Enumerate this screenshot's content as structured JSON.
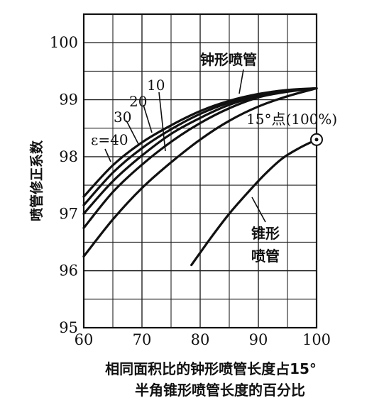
{
  "chart_data": {
    "type": "line",
    "xlabel_line1": "相同面积比的钟形喷管长度占15°",
    "xlabel_line2": "半角锥形喷管长度的百分比",
    "ylabel": "喷管修正系数",
    "xlim": [
      60,
      100
    ],
    "ylim": [
      95,
      100.5
    ],
    "x_ticks": [
      "60",
      "70",
      "80",
      "90",
      "100"
    ],
    "y_ticks": [
      "95",
      "96",
      "97",
      "98",
      "99",
      "100"
    ],
    "grid": true,
    "series": [
      {
        "name": "ε=40",
        "x": [
          60,
          65,
          70,
          75,
          80,
          85,
          90,
          95,
          100
        ],
        "y": [
          97.3,
          97.85,
          98.25,
          98.55,
          98.8,
          98.98,
          99.1,
          99.17,
          99.2
        ]
      },
      {
        "name": "30",
        "x": [
          60,
          65,
          70,
          75,
          80,
          85,
          90,
          95,
          100
        ],
        "y": [
          97.15,
          97.72,
          98.15,
          98.48,
          98.75,
          98.95,
          99.08,
          99.16,
          99.2
        ]
      },
      {
        "name": "20",
        "x": [
          60,
          65,
          70,
          75,
          80,
          85,
          90,
          95,
          100
        ],
        "y": [
          97.0,
          97.57,
          98.02,
          98.4,
          98.68,
          98.91,
          99.06,
          99.15,
          99.2
        ]
      },
      {
        "name": "10",
        "x": [
          60,
          65,
          70,
          75,
          80,
          85,
          90,
          95,
          100
        ],
        "y": [
          96.75,
          97.38,
          97.86,
          98.26,
          98.59,
          98.85,
          99.04,
          99.14,
          99.2
        ]
      },
      {
        "name": "钟形喷管",
        "x": [
          60,
          65,
          70,
          75,
          80,
          85,
          90,
          95,
          100
        ],
        "y": [
          96.25,
          96.9,
          97.45,
          97.9,
          98.3,
          98.63,
          98.88,
          99.06,
          99.2
        ]
      },
      {
        "name": "锥形喷管",
        "x": [
          78.5,
          82,
          85,
          88,
          91,
          94,
          97,
          100
        ],
        "y": [
          96.1,
          96.6,
          97.0,
          97.35,
          97.68,
          97.96,
          98.15,
          98.3
        ]
      }
    ],
    "annotations": {
      "bell_label": "钟形喷管",
      "cone_label_1": "锥形",
      "cone_label_2": "喷管",
      "point_label": "15°点(100%)",
      "eps_label": "ε=40",
      "label_30": "30",
      "label_20": "20",
      "label_10": "10"
    },
    "highlight_point": {
      "x": 100,
      "y": 98.3
    }
  }
}
